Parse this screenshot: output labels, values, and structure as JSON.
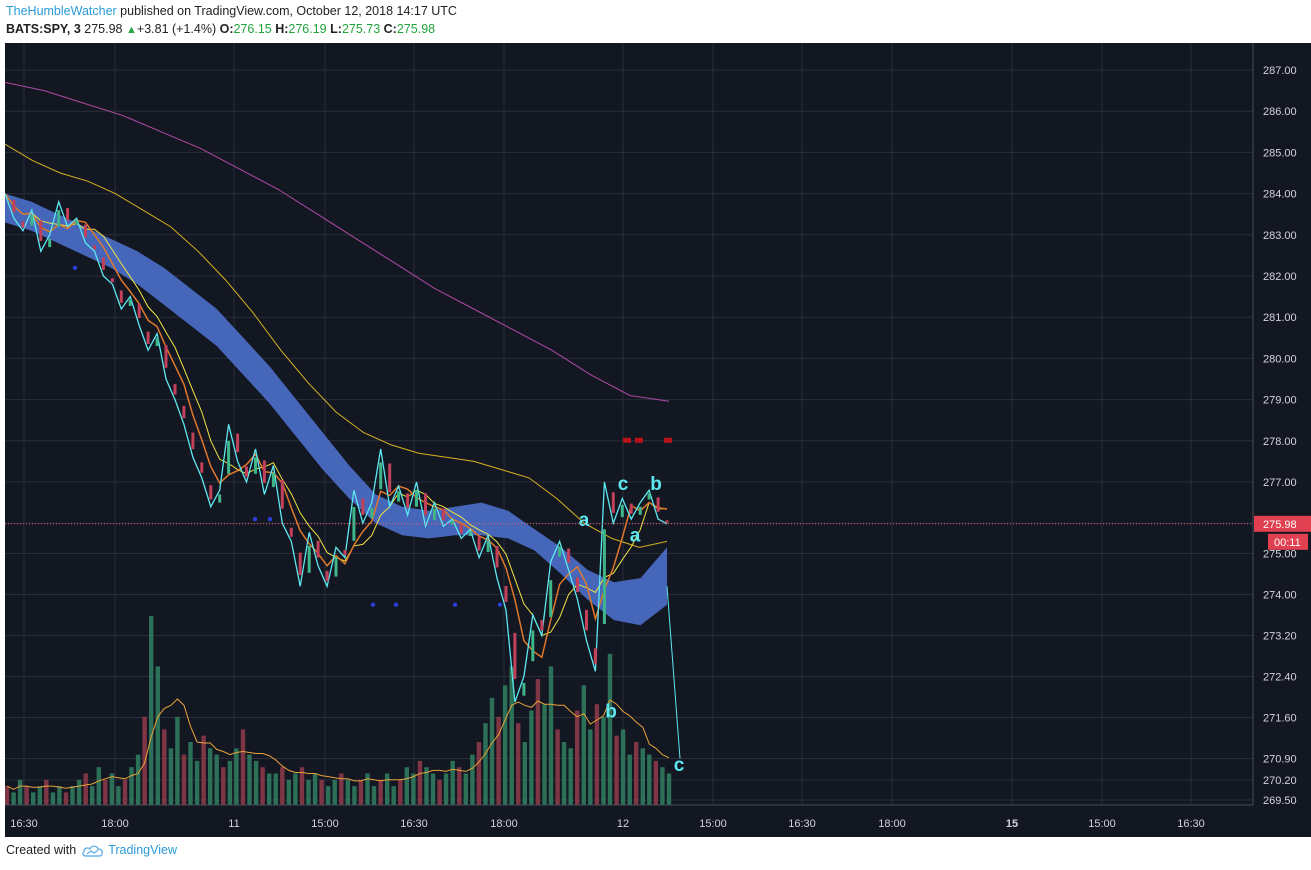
{
  "header": {
    "author": "TheHumbleWatcher",
    "published_text": " published on TradingView.com, October 12, 2018 14:17 UTC",
    "symbol": "BATS:SPY, 3",
    "last": "275.98",
    "change_icon": "up-triangle-icon",
    "change": "+3.81 (+1.4%)",
    "o_label": "O:",
    "o": "276.15",
    "h_label": "H:",
    "h": "276.19",
    "l_label": "L:",
    "l": "275.73",
    "c_label": "C:",
    "c": "275.98"
  },
  "footer": {
    "created_with": "Created with",
    "brand": "TradingView",
    "logo_icon": "tradingview-cloud-icon"
  },
  "colors": {
    "background": "#131722",
    "grid": "#2a2e39",
    "axis_text": "#d1d4dc",
    "cyan": "#5de8f0",
    "ribbon": "#4f74d4",
    "yellow_ma": "#d6b21f",
    "purple_ma": "#b04aa3",
    "price_line": "#f05a6a",
    "volume_up": "#2f7a5d",
    "volume_down": "#8c3a48",
    "marker_red": "#b8121b",
    "marker_blue": "#2a3fd8"
  },
  "chart_data": {
    "type": "candlestick",
    "symbol": "BATS:SPY",
    "interval": "3",
    "last_price": 275.98,
    "last_price_label": "275.98",
    "countdown_label": "00:11",
    "y_ticks": [
      "287.00",
      "286.00",
      "285.00",
      "284.00",
      "283.00",
      "282.00",
      "281.00",
      "280.00",
      "279.00",
      "278.00",
      "277.00",
      "276.00",
      "275.00",
      "274.00",
      "273.20",
      "272.40",
      "271.60",
      "270.90",
      "270.20",
      "269.50"
    ],
    "x_ticks": [
      "16:30",
      "18:00",
      "11",
      "15:00",
      "16:30",
      "18:00",
      "12",
      "15:00",
      "16:30",
      "18:00",
      "15",
      "15:00",
      "16:30"
    ],
    "bold_x_ticks": [
      "15"
    ],
    "price_path": [
      284.0,
      283.4,
      283.1,
      283.6,
      282.6,
      283.0,
      283.8,
      283.2,
      283.4,
      282.8,
      282.6,
      282.0,
      281.8,
      281.2,
      281.5,
      280.8,
      280.2,
      280.6,
      279.5,
      279.0,
      278.4,
      277.6,
      277.1,
      276.4,
      276.8,
      278.4,
      277.5,
      277.0,
      277.8,
      276.7,
      277.4,
      276.0,
      275.4,
      274.2,
      275.7,
      274.7,
      274.2,
      275.2,
      274.9,
      276.8,
      276.0,
      276.5,
      277.8,
      276.4,
      276.9,
      276.2,
      277.0,
      275.9,
      276.5,
      275.9,
      276.1,
      275.5,
      275.8,
      274.9,
      275.6,
      274.4,
      273.7,
      271.9,
      272.4,
      273.6,
      273.2,
      274.8,
      275.4,
      274.6,
      273.9,
      273.1,
      272.5,
      277.0,
      276.0,
      276.6,
      276.1,
      276.5,
      276.8,
      276.1,
      275.98
    ],
    "projection": [
      {
        "x": "12 10:30",
        "y": 274.2
      },
      {
        "x": "12 15:00",
        "y": 270.9
      }
    ],
    "ribbon_upper": [
      284.0,
      283.8,
      283.5,
      283.2,
      282.9,
      282.6,
      282.2,
      281.7,
      281.2,
      280.5,
      279.8,
      279.0,
      278.2,
      277.4,
      276.7,
      276.4,
      276.3,
      276.4,
      276.5,
      276.3,
      275.8,
      275.2,
      274.6,
      274.3,
      274.4,
      275.2
    ],
    "ribbon_lower": [
      283.3,
      283.1,
      282.8,
      282.5,
      282.2,
      281.8,
      281.3,
      280.8,
      280.3,
      279.6,
      278.9,
      278.1,
      277.3,
      276.6,
      276.0,
      275.6,
      275.5,
      275.6,
      275.6,
      275.5,
      275.1,
      274.5,
      273.9,
      273.5,
      273.4,
      273.8
    ],
    "ma_yellow": [
      285.2,
      284.8,
      284.5,
      284.3,
      284.0,
      283.6,
      283.2,
      282.6,
      281.9,
      281.1,
      280.2,
      279.4,
      278.7,
      278.2,
      277.9,
      277.7,
      277.6,
      277.5,
      277.3,
      277.1,
      276.6,
      276.0,
      275.5,
      275.2,
      275.4
    ],
    "ma_purple": [
      286.7,
      286.5,
      286.2,
      285.9,
      285.5,
      285.1,
      284.6,
      284.1,
      283.5,
      282.9,
      282.3,
      281.7,
      281.2,
      280.7,
      280.2,
      279.6,
      279.1,
      278.96
    ],
    "wave_labels": [
      {
        "text": "c",
        "y": 276.8,
        "color": "cyan"
      },
      {
        "text": "b",
        "y": 276.8,
        "color": "cyan"
      },
      {
        "text": "a",
        "y": 275.9,
        "color": "cyan"
      },
      {
        "text": "a",
        "y": 275.4,
        "color": "cyan"
      },
      {
        "text": "b",
        "y": 271.6,
        "color": "cyan"
      },
      {
        "text": "c",
        "y": 270.5,
        "color": "cyan"
      }
    ],
    "volume": [
      3,
      2,
      4,
      3,
      2,
      3,
      4,
      2,
      3,
      2,
      3,
      4,
      5,
      3,
      6,
      4,
      5,
      3,
      4,
      6,
      8,
      14,
      30,
      22,
      12,
      9,
      14,
      8,
      10,
      7,
      11,
      9,
      8,
      6,
      7,
      9,
      12,
      8,
      7,
      6,
      5,
      5,
      6,
      4,
      5,
      6,
      4,
      5,
      4,
      3,
      4,
      5,
      4,
      3,
      4,
      5,
      3,
      4,
      5,
      3,
      4,
      6,
      5,
      7,
      6,
      5,
      4,
      5,
      7,
      6,
      5,
      8,
      10,
      13,
      17,
      14,
      19,
      22,
      13,
      10,
      15,
      20,
      16,
      22,
      12,
      10,
      9,
      15,
      19,
      12,
      16,
      14,
      24,
      11,
      12,
      8,
      10,
      9,
      8,
      7,
      6,
      5
    ]
  }
}
